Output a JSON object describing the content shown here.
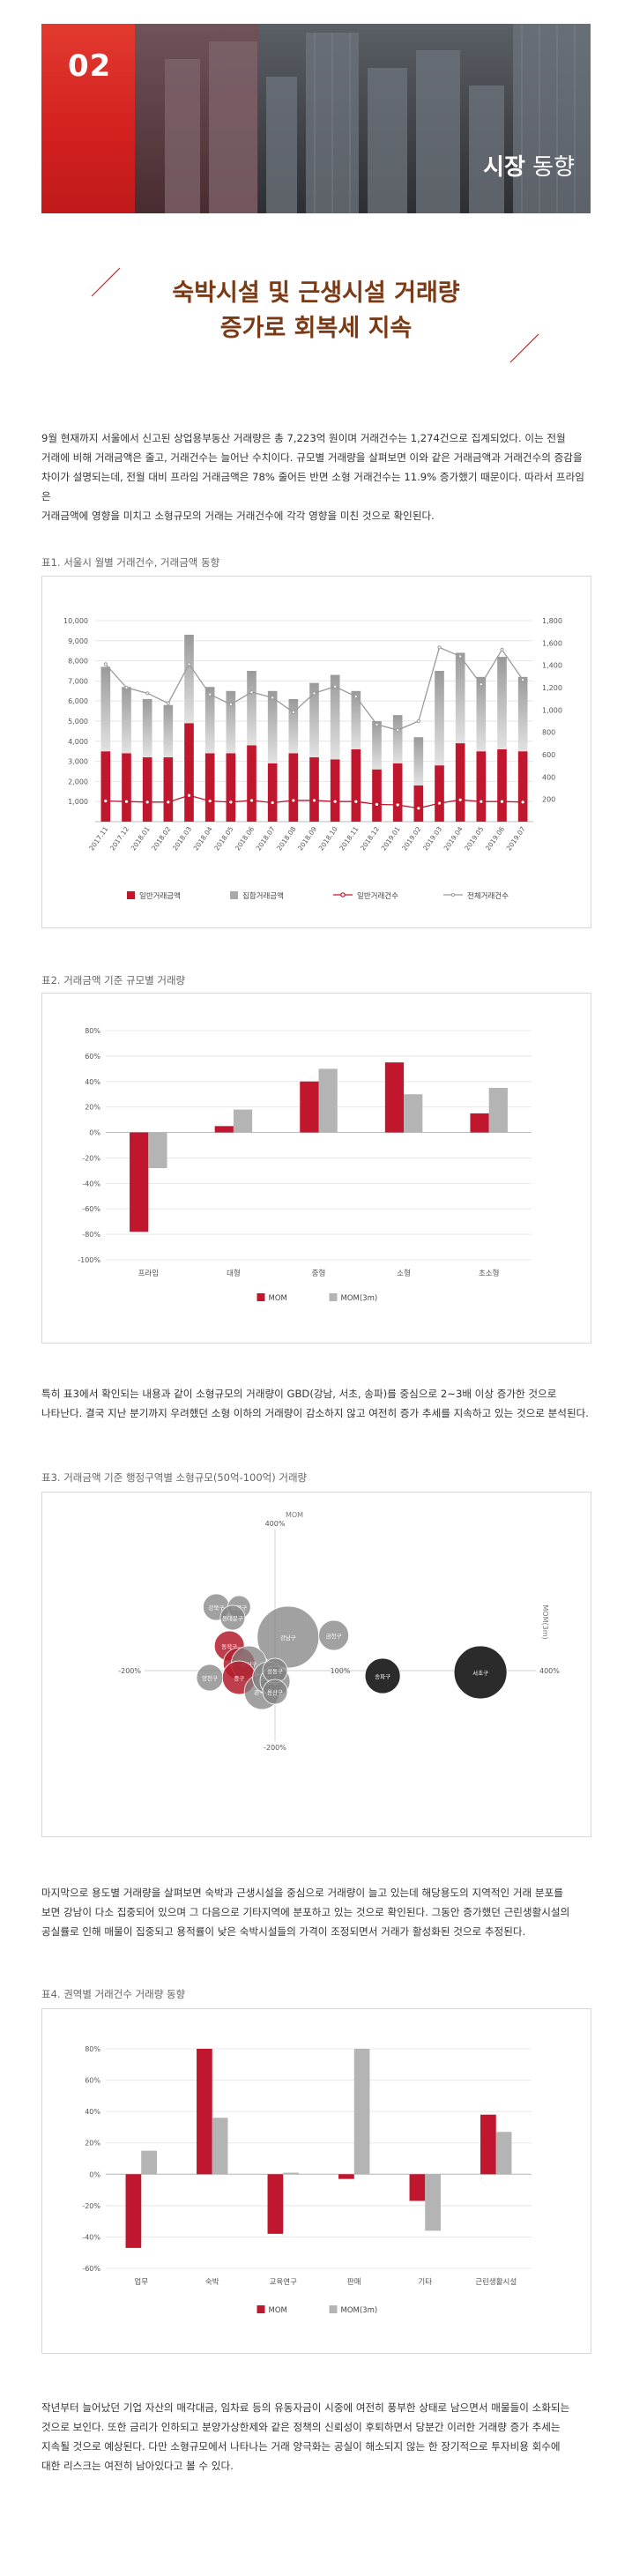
{
  "banner": {
    "number": "02",
    "title_bold": "시장",
    "title_rest": " 동향"
  },
  "headline": {
    "line1": "숙박시설 및 근생시설 거래량",
    "line2": "증가로 회복세 지속"
  },
  "paragraphs": {
    "p1": [
      "9월 현재까지 서울에서 신고된 상업용부동산 거래량은 총 7,223억 원이며 거래건수는 1,274건으로 집계되었다. 이는 전월",
      "거래에 비해 거래금액은 줄고, 거래건수는 늘어난 수치이다. 규모별 거래량을 살펴보면 이와 같은 거래금액과 거래건수의 증감을",
      "차이가 설명되는데, 전월 대비 프라임 거래금액은 78% 줄어든 반면 소형 거래건수는 11.9% 증가했기 때문이다. 따라서 프라임은",
      "거래금액에 영향을 미치고 소형규모의 거래는 거래건수에 각각 영향을 미친 것으로 확인된다."
    ],
    "p2": [
      "특히 표3에서 확인되는 내용과 같이 소형규모의 거래량이 GBD(강남, 서초, 송파)를 중심으로 2~3배 이상 증가한 것으로",
      "나타난다. 결국 지난 분기까지 우려했던 소형 이하의 거래량이 감소하지 않고 여전히 증가 추세를 지속하고 있는 것으로 분석된다."
    ],
    "p3": [
      "마지막으로 용도별 거래량을 살펴보면 숙박과 근생시설을 중심으로 거래량이 늘고 있는데 해당용도의 지역적인 거래 분포를",
      "보면 강남이 다소 집중되어 있으며 그 다음으로 기타지역에 분포하고 있는 것으로 확인된다. 그동안 증가했던 근린생활시설의",
      "공실률로 인해 매물이 집중되고 용적률이 낮은 숙박시설들의 가격이 조정되면서 거래가 활성화된 것으로 추정된다."
    ],
    "p4": [
      "작년부터 늘어났던 기업 자산의 매각대금, 임차료 등의 유동자금이 시중에 여전히 풍부한 상태로 남으면서 매물들이 소화되는",
      "것으로 보인다. 또한 금리가 인하되고 분양가상한제와 같은 정책의 신뢰성이 후퇴하면서 당분간 이러한 거래량 증가 추세는",
      "지속될 것으로 예상된다. 다만 소형규모에서 나타나는 거래 양극화는 공실이 해소되지 않는 한 장기적으로 투자비용 회수에",
      "대한 리스크는 여전히 남아있다고 볼 수 있다."
    ]
  },
  "captions": {
    "c1": "표1. 서울시 월별 거래건수, 거래금액 동향",
    "c2": "표2. 거래금액 기준 규모별 거래량",
    "c3": "표3. 거래금액 기준 행정구역별 소형규모(50억-100억) 거래량",
    "c4": "표4. 권역별 거래건수 거래량 동향"
  },
  "colors": {
    "red": "#c0172e",
    "gray": "#b4b4b4",
    "brown": "#7a3a16",
    "banner_red": "#d21f1f"
  },
  "chart_data": [
    {
      "type": "bar",
      "title": "",
      "categories": [
        "2017.11",
        "2017.12",
        "2018.01",
        "2018.02",
        "2018.03",
        "2018.04",
        "2018.05",
        "2018.06",
        "2018.07",
        "2018.08",
        "2018.09",
        "2018.10",
        "2018.11",
        "2018.12",
        "2019.01",
        "2019.02",
        "2019.03",
        "2019.04",
        "2019.05",
        "2019.06",
        "2019.07"
      ],
      "series": [
        {
          "name": "일반거래금액",
          "kind": "bar-stacked",
          "axis": "left",
          "values": [
            3500,
            3400,
            3200,
            3200,
            4900,
            3400,
            3400,
            3800,
            2900,
            3400,
            3200,
            3100,
            3600,
            2600,
            2900,
            1800,
            2800,
            3900,
            3500,
            3600,
            3500
          ]
        },
        {
          "name": "집합거래금액",
          "kind": "bar-stacked",
          "axis": "left",
          "values": [
            4200,
            3300,
            2900,
            2600,
            4400,
            3300,
            3100,
            3700,
            3600,
            2700,
            3700,
            4200,
            2900,
            2400,
            2400,
            2400,
            4700,
            4500,
            3700,
            4600,
            3700
          ]
        },
        {
          "name": "일반거래건수",
          "kind": "line",
          "axis": "right",
          "values": [
            185,
            180,
            175,
            175,
            235,
            185,
            175,
            190,
            170,
            190,
            190,
            180,
            180,
            155,
            150,
            120,
            165,
            195,
            180,
            180,
            175
          ]
        },
        {
          "name": "전체거래건수",
          "kind": "line",
          "axis": "right",
          "values": [
            1410,
            1200,
            1150,
            1060,
            1410,
            1140,
            1050,
            1160,
            1110,
            980,
            1150,
            1210,
            1120,
            870,
            820,
            900,
            1560,
            1480,
            1230,
            1540,
            1270
          ]
        }
      ],
      "ylim_left": [
        0,
        10000
      ],
      "yticks_left": [
        "1,000",
        "2,000",
        "3,000",
        "4,000",
        "5,000",
        "6,000",
        "7,000",
        "8,000",
        "9,000",
        "10,000"
      ],
      "ylim_right": [
        0,
        1800
      ],
      "yticks_right": [
        "200",
        "400",
        "600",
        "800",
        "1,000",
        "1,200",
        "1,400",
        "1,600",
        "1,800"
      ],
      "legend": "bottom",
      "grid": true
    },
    {
      "type": "bar",
      "title": "",
      "categories": [
        "프라임",
        "대형",
        "중형",
        "소형",
        "초소형"
      ],
      "series": [
        {
          "name": "MOM",
          "values": [
            -78,
            5,
            40,
            55,
            15
          ]
        },
        {
          "name": "MOM(3m)",
          "values": [
            -28,
            18,
            50,
            30,
            35
          ]
        }
      ],
      "ylim": [
        -100,
        80
      ],
      "yticks": [
        "80%",
        "60%",
        "40%",
        "20%",
        "0%",
        "-20%",
        "-40%",
        "-60%",
        "-80%",
        "-100%"
      ],
      "legend": "bottom",
      "grid": true
    },
    {
      "type": "scatter",
      "title": "",
      "xlabel": "MOM",
      "ylabel": "MOM(3m)",
      "xlim": [
        -200,
        400
      ],
      "ylim": [
        -200,
        400
      ],
      "tick_labels": {
        "x_neg": "-200%",
        "x_pos1": "100%",
        "x_pos2": "400%",
        "y_top": "400%",
        "y_bottom": "-200%"
      },
      "points": [
        {
          "label": "강북구",
          "x": -90,
          "y": 180,
          "r": 15,
          "color": "gray"
        },
        {
          "label": "도봉구",
          "x": -55,
          "y": 180,
          "r": 13,
          "color": "gray"
        },
        {
          "label": "동대문구",
          "x": -65,
          "y": 150,
          "r": 14,
          "color": "gray"
        },
        {
          "label": "강남구",
          "x": 20,
          "y": 95,
          "r": 35,
          "color": "gray"
        },
        {
          "label": "금천구",
          "x": 90,
          "y": 100,
          "r": 17,
          "color": "gray"
        },
        {
          "label": "동작구",
          "x": -70,
          "y": 70,
          "r": 17,
          "color": "red"
        },
        {
          "label": "마포구",
          "x": -55,
          "y": 20,
          "r": 18,
          "color": "red"
        },
        {
          "label": "강서구",
          "x": -40,
          "y": 20,
          "r": 20,
          "color": "gray"
        },
        {
          "label": "양천구",
          "x": -100,
          "y": -20,
          "r": 15,
          "color": "gray"
        },
        {
          "label": "중구",
          "x": -55,
          "y": -20,
          "r": 19,
          "color": "red"
        },
        {
          "label": "관악구",
          "x": -20,
          "y": -60,
          "r": 20,
          "color": "gray"
        },
        {
          "label": "은평구",
          "x": -10,
          "y": -20,
          "r": 18,
          "color": "gray"
        },
        {
          "label": "광진구",
          "x": 0,
          "y": -30,
          "r": 17,
          "color": "gray"
        },
        {
          "label": "성동구",
          "x": 0,
          "y": 0,
          "r": 14,
          "color": "gray"
        },
        {
          "label": "용산구",
          "x": 0,
          "y": -60,
          "r": 14,
          "color": "gray"
        },
        {
          "label": "송파구",
          "x": 165,
          "y": -15,
          "r": 20,
          "color": "dark"
        },
        {
          "label": "서초구",
          "x": 315,
          "y": -5,
          "r": 30,
          "color": "dark"
        }
      ]
    },
    {
      "type": "bar",
      "title": "",
      "categories": [
        "업무",
        "숙박",
        "교육연구",
        "판매",
        "기타",
        "근린생활시설"
      ],
      "series": [
        {
          "name": "MOM",
          "values": [
            -47,
            80,
            -38,
            -3,
            -17,
            38
          ]
        },
        {
          "name": "MOM(3m)",
          "values": [
            15,
            36,
            1,
            80,
            -36,
            27
          ]
        }
      ],
      "ylim": [
        -60,
        80
      ],
      "yticks": [
        "80%",
        "60%",
        "40%",
        "20%",
        "0%",
        "-20%",
        "-40%",
        "-60%"
      ],
      "legend": "bottom",
      "grid": true
    }
  ]
}
